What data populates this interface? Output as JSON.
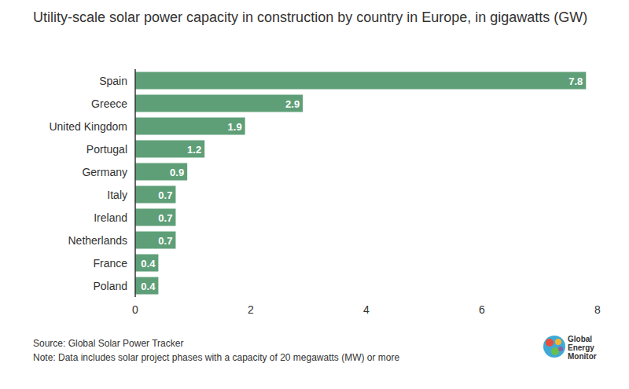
{
  "chart_data": {
    "type": "bar",
    "orientation": "horizontal",
    "title": "Utility-scale solar power capacity in construction by country in Europe, in gigawatts (GW)",
    "categories": [
      "Spain",
      "Greece",
      "United Kingdom",
      "Portugal",
      "Germany",
      "Italy",
      "Ireland",
      "Netherlands",
      "France",
      "Poland"
    ],
    "values": [
      7.8,
      2.9,
      1.9,
      1.2,
      0.9,
      0.7,
      0.7,
      0.7,
      0.4,
      0.4
    ],
    "color": "#5f9f78",
    "xlim": [
      0,
      8
    ],
    "xticks": [
      0,
      2,
      4,
      6,
      8
    ],
    "grid": false,
    "data_labels": true,
    "annotations": [
      "Source: Global Solar Power Tracker",
      "Note: Data includes solar project phases with a capacity of 20 megawatts (MW) or more",
      "Global Energy Monitor"
    ]
  }
}
